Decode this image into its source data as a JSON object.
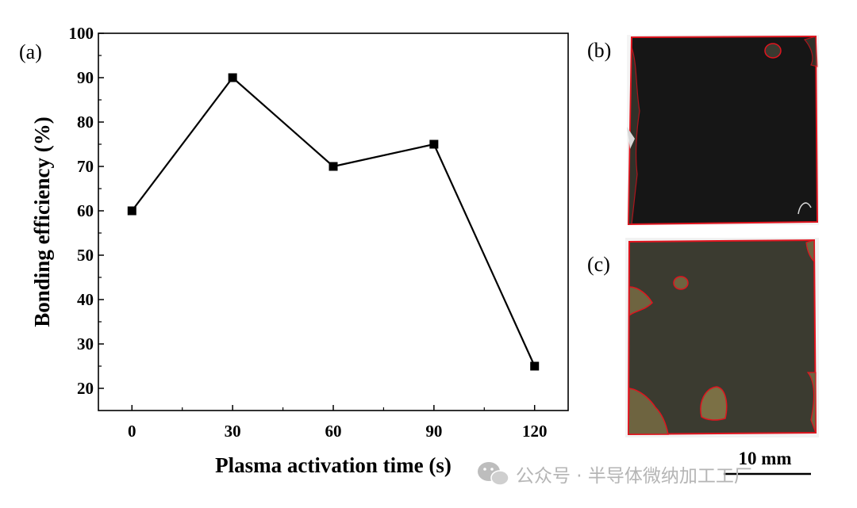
{
  "panel_labels": {
    "a": "(a)",
    "b": "(b)",
    "c": "(c)"
  },
  "chart_data": {
    "type": "line",
    "x": [
      0,
      30,
      60,
      90,
      120
    ],
    "series": [
      {
        "values": [
          60,
          90,
          70,
          75,
          25
        ],
        "marker": "square",
        "color": "#000000"
      }
    ],
    "xlabel": "Plasma activation time (s)",
    "ylabel": "Bonding efficiency (%)",
    "xticks": [
      0,
      30,
      60,
      90,
      120
    ],
    "yticks": [
      20,
      30,
      40,
      50,
      60,
      70,
      80,
      90,
      100
    ],
    "xlim": [
      -10,
      130
    ],
    "ylim": [
      15,
      100
    ],
    "grid": false
  },
  "photos": {
    "b": {
      "bonded_color": "#161616",
      "edge_color": "#e0141e"
    },
    "c": {
      "bonded_color": "#3b3b30",
      "edge_color": "#e0141e"
    }
  },
  "scale_bar": {
    "label": "10 mm"
  },
  "watermark": {
    "icon": "wechat-icon",
    "text": "公众号 · 半导体微纳加工工厂"
  }
}
